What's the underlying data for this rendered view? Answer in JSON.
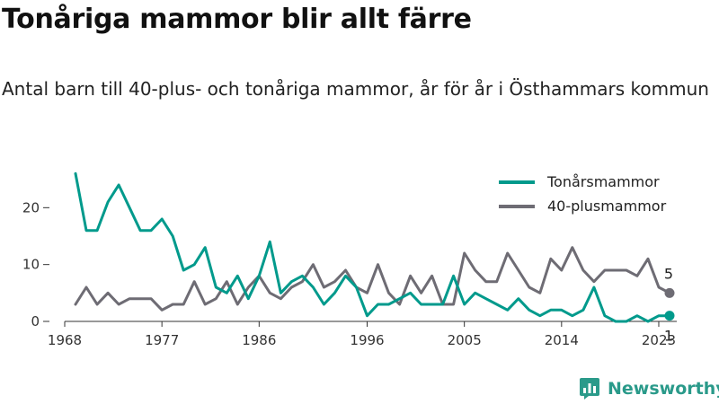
{
  "title": "Tonåriga mammor blir allt färre",
  "subtitle": "Antal barn till 40-plus- och tonåriga mammor, år för år i Östhammars kommun",
  "brand": {
    "name": "Newsworthy",
    "logo_icon": "bar-chart-logo-icon"
  },
  "chart_data": {
    "type": "line",
    "x_start": 1969,
    "x_end": 2024,
    "x_ticks": [
      1968,
      1977,
      1986,
      1996,
      2005,
      2014,
      2023
    ],
    "x_tick_labels": [
      "1968",
      "1977",
      "1986",
      "1996",
      "2005",
      "2014",
      "2023"
    ],
    "y_ticks": [
      0,
      10,
      20
    ],
    "y_tick_labels": [
      "0",
      "10",
      "20"
    ],
    "ylim": [
      0,
      27
    ],
    "grid": false,
    "legend_position": "top-right",
    "series": [
      {
        "name": "Tonårsmammor",
        "color": "#009a8c",
        "values": [
          26,
          16,
          16,
          21,
          24,
          20,
          16,
          16,
          18,
          15,
          9,
          10,
          13,
          6,
          5,
          8,
          4,
          8,
          14,
          5,
          7,
          8,
          6,
          3,
          5,
          8,
          6,
          1,
          3,
          3,
          4,
          5,
          3,
          3,
          3,
          8,
          3,
          5,
          4,
          3,
          2,
          4,
          2,
          1,
          2,
          2,
          1,
          2,
          6,
          1,
          0,
          0,
          1,
          0,
          1,
          1
        ],
        "end_label": "1"
      },
      {
        "name": "40-plusmammor",
        "color": "#6e6c74",
        "values": [
          3,
          6,
          3,
          5,
          3,
          4,
          4,
          4,
          2,
          3,
          3,
          7,
          3,
          4,
          7,
          3,
          6,
          8,
          5,
          4,
          6,
          7,
          10,
          6,
          7,
          9,
          6,
          5,
          10,
          5,
          3,
          8,
          5,
          8,
          3,
          3,
          12,
          9,
          7,
          7,
          12,
          9,
          6,
          5,
          11,
          9,
          13,
          9,
          7,
          9,
          9,
          9,
          8,
          11,
          6,
          5
        ],
        "end_label": "5"
      }
    ]
  }
}
